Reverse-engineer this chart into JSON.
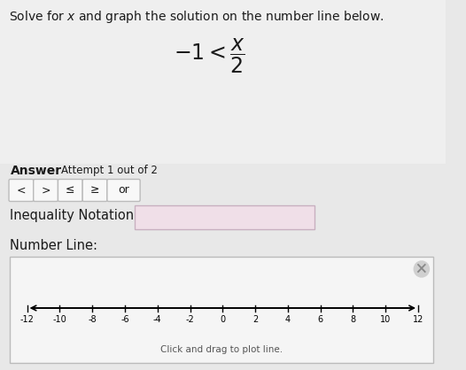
{
  "title": "Solve for x and graph the solution on the number line below.",
  "equation_left": "$-1 < $",
  "answer_label": "Answer",
  "attempt_label": "Attempt 1 out of 2",
  "buttons": [
    "<",
    ">",
    "≤",
    "≥",
    "or"
  ],
  "inequality_label": "Inequality Notation:",
  "number_line_label": "Number Line:",
  "number_line_caption": "Click and drag to plot line.",
  "number_line_ticks": [
    -12,
    -10,
    -8,
    -6,
    -4,
    -2,
    0,
    2,
    4,
    6,
    8,
    10,
    12
  ],
  "bg_color": "#e8e8e8",
  "top_bg": "#efefef",
  "section_bg": "#e8e8e8",
  "number_line_bg": "#f5f5f5",
  "number_line_border": "#bbbbbb",
  "button_bg": "#f8f8f8",
  "button_border": "#bbbbbb",
  "input_box_bg": "#f0dfe8",
  "input_box_border": "#c8b0c0",
  "text_color": "#1a1a1a",
  "gray_text": "#555555"
}
